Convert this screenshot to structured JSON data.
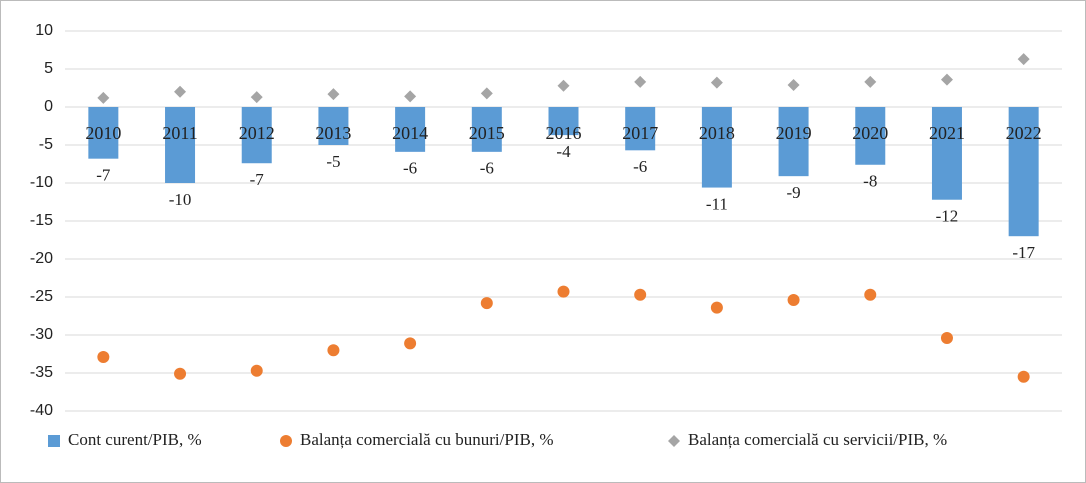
{
  "chart_data": {
    "type": "bar",
    "categories": [
      "2010",
      "2011",
      "2012",
      "2013",
      "2014",
      "2015",
      "2016",
      "2017",
      "2018",
      "2019",
      "2020",
      "2021",
      "2022"
    ],
    "series": [
      {
        "name": "Cont curent/PIB, %",
        "type": "bar",
        "color": "#5b9bd5",
        "values": [
          -6.8,
          -10.0,
          -7.4,
          -5.0,
          -5.9,
          -5.9,
          -3.7,
          -5.7,
          -10.6,
          -9.1,
          -7.6,
          -12.2,
          -17.0
        ],
        "value_labels": [
          "-7",
          "-10",
          "-7",
          "-5",
          "-6",
          "-6",
          "-4",
          "-6",
          "-11",
          "-9",
          "-8",
          "-12",
          "-17"
        ]
      },
      {
        "name": "Balanța comercială cu bunuri/PIB, %",
        "type": "scatter",
        "marker": "circle",
        "color": "#ed7d31",
        "values": [
          -32.9,
          -35.1,
          -34.7,
          -32.0,
          -31.1,
          -25.8,
          -24.3,
          -24.7,
          -26.4,
          -25.4,
          -24.7,
          -30.4,
          -35.5
        ]
      },
      {
        "name": "Balanța comercială cu servicii/PIB, %",
        "type": "scatter",
        "marker": "diamond",
        "color": "#a5a5a5",
        "values": [
          1.2,
          2.0,
          1.3,
          1.7,
          1.4,
          1.8,
          2.8,
          3.3,
          3.2,
          2.9,
          3.3,
          3.6,
          6.3
        ]
      }
    ],
    "ylim": [
      -40,
      10
    ],
    "yticks": [
      10,
      5,
      0,
      -5,
      -10,
      -15,
      -20,
      -25,
      -30,
      -35,
      -40
    ],
    "grid": true,
    "legend": "bottom"
  }
}
